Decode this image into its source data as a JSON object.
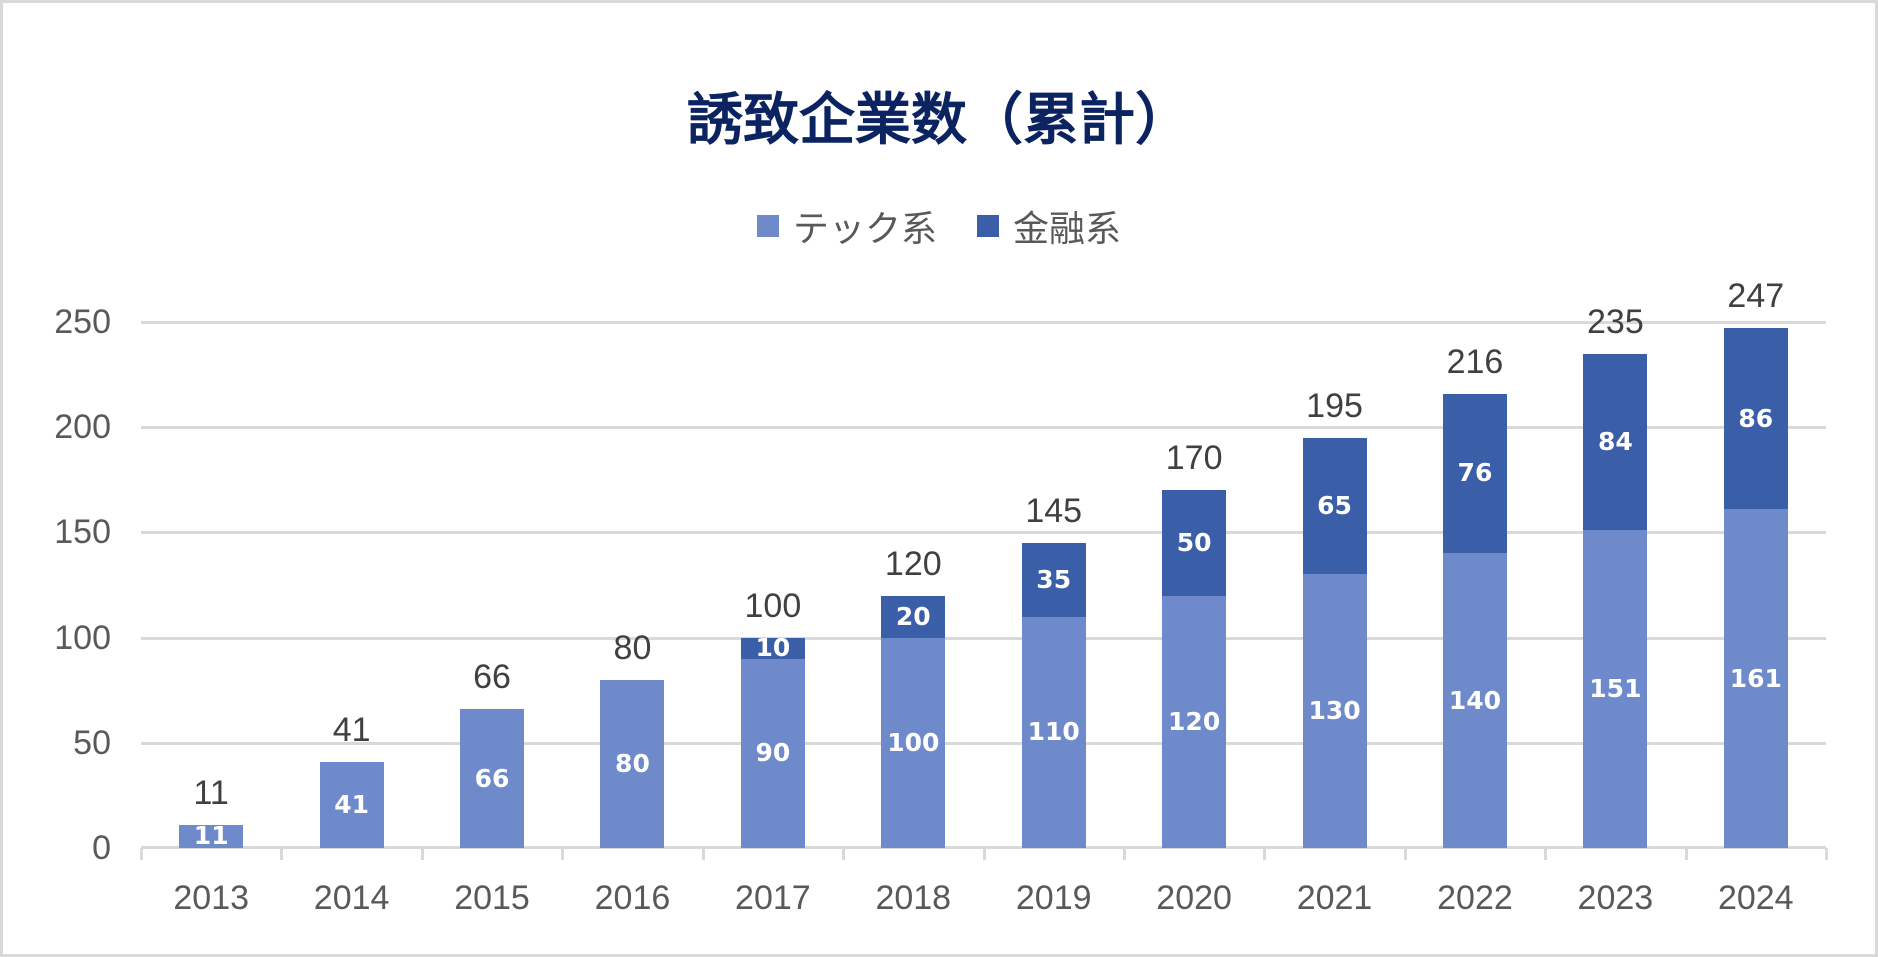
{
  "title": "誘致企業数（累計）",
  "legend": [
    {
      "label": "テック系",
      "color": "#6E8ACB"
    },
    {
      "label": "金融系",
      "color": "#3A5FA8"
    }
  ],
  "y_axis": {
    "ticks": [
      "0",
      "50",
      "100",
      "150",
      "200",
      "250"
    ]
  },
  "x_axis": {
    "labels": [
      "2013",
      "2014",
      "2015",
      "2016",
      "2017",
      "2018",
      "2019",
      "2020",
      "2021",
      "2022",
      "2023",
      "2024"
    ]
  },
  "colors": {
    "tech": "#6E8ACB",
    "finance": "#3A5FA8",
    "title": "#0B2461",
    "grid": "#D9D9D9"
  },
  "chart_data": {
    "type": "bar",
    "stacked": true,
    "title": "誘致企業数（累計）",
    "xlabel": "",
    "ylabel": "",
    "ylim": [
      0,
      250
    ],
    "yticks": [
      0,
      50,
      100,
      150,
      200,
      250
    ],
    "grid": true,
    "legend_position": "top",
    "categories": [
      "2013",
      "2014",
      "2015",
      "2016",
      "2017",
      "2018",
      "2019",
      "2020",
      "2021",
      "2022",
      "2023",
      "2024"
    ],
    "series": [
      {
        "name": "テック系",
        "color": "#6E8ACB",
        "values": [
          11,
          41,
          66,
          80,
          90,
          100,
          110,
          120,
          130,
          140,
          151,
          161
        ]
      },
      {
        "name": "金融系",
        "color": "#3A5FA8",
        "values": [
          0,
          0,
          0,
          0,
          10,
          20,
          35,
          50,
          65,
          76,
          84,
          86
        ]
      }
    ],
    "totals": [
      11,
      41,
      66,
      80,
      100,
      120,
      145,
      170,
      195,
      216,
      235,
      247
    ],
    "segment_labels": {
      "テック系": [
        "11",
        "41",
        "66",
        "80",
        "90",
        "100",
        "110",
        "120",
        "130",
        "140",
        "151",
        "161"
      ],
      "金融系": [
        "",
        "",
        "",
        "",
        "10",
        "20",
        "35",
        "50",
        "65",
        "76",
        "84",
        "86"
      ]
    }
  }
}
